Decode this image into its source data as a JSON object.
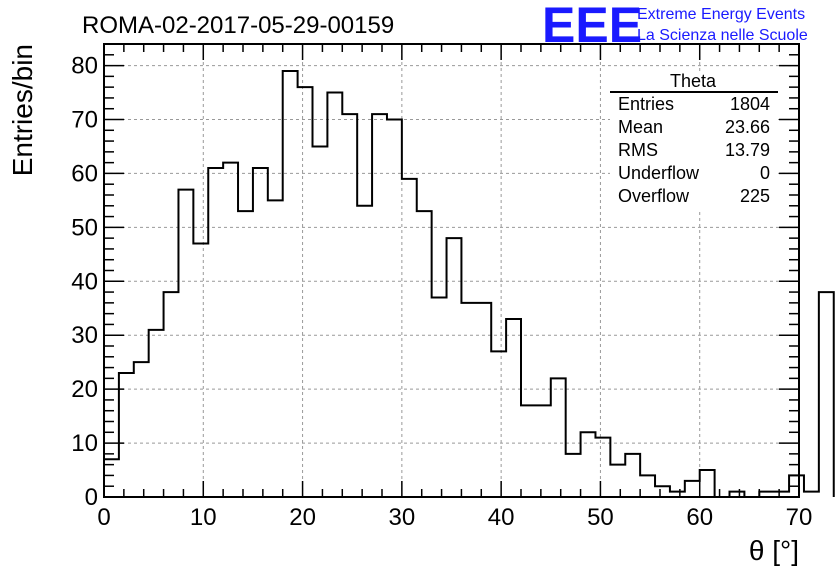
{
  "header": {
    "title": "ROMA-02-2017-05-29-00159",
    "logo_text": "EEE",
    "logo_line1": "Extreme Energy Events",
    "logo_line2": "La Scienza nelle Scuole",
    "logo_color": "#1a1aff"
  },
  "stats": {
    "title": "Theta",
    "rows": [
      {
        "label": "Entries",
        "value": "1804"
      },
      {
        "label": "Mean",
        "value": "23.66"
      },
      {
        "label": "RMS",
        "value": "13.79"
      },
      {
        "label": "Underflow",
        "value": "0"
      },
      {
        "label": "Overflow",
        "value": "225"
      }
    ]
  },
  "chart_data": {
    "type": "bar",
    "style": "step-histogram",
    "bin_width": 1.5,
    "x_start": 0,
    "xlim": [
      0,
      70
    ],
    "ylim": [
      0,
      84
    ],
    "xlabel": "θ [°]",
    "ylabel": "Entries/bin",
    "x_ticks": [
      0,
      10,
      20,
      30,
      40,
      50,
      60,
      70
    ],
    "y_ticks": [
      0,
      10,
      20,
      30,
      40,
      50,
      60,
      70,
      80
    ],
    "grid": true,
    "values": [
      7,
      23,
      25,
      31,
      38,
      57,
      47,
      61,
      62,
      53,
      61,
      55,
      79,
      76,
      65,
      75,
      71,
      54,
      71,
      70,
      59,
      53,
      37,
      48,
      36,
      36,
      27,
      33,
      17,
      17,
      22,
      8,
      12,
      11,
      6,
      8,
      4,
      2,
      1,
      3,
      5,
      0,
      1,
      0,
      1,
      1,
      4,
      1,
      38
    ]
  }
}
